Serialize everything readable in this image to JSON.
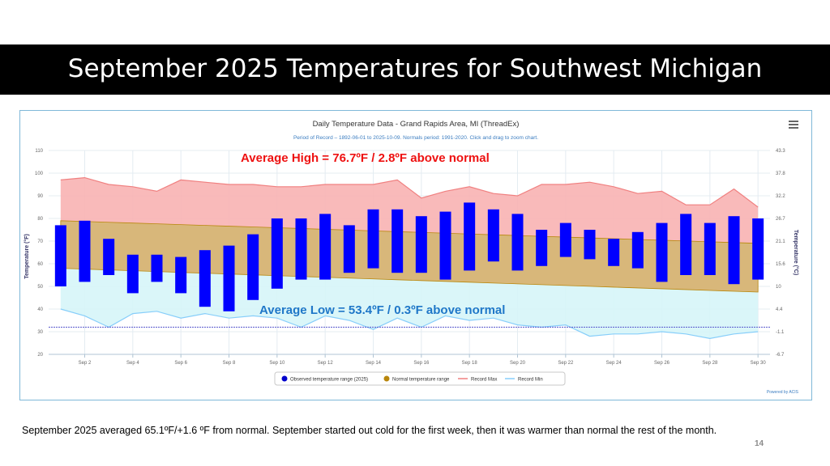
{
  "slide": {
    "title": "September 2025 Temperatures for Southwest Michigan",
    "footer": "September 2025 averaged 65.1ºF/+1.6 ºF from normal. September started out cold for the first week, then it was warmer than normal the rest of the month.",
    "page_number": "14"
  },
  "chart_data": {
    "type": "bar",
    "title": "Daily Temperature Data - Grand Rapids Area, MI (ThreadEx)",
    "subtitle": "Period of Record – 1892-06-01 to 2025-10-09. Normals period: 1991-2020. Click and drag to zoom chart.",
    "ylabel": "Temperature (°F)",
    "ylabel_right": "Temperature (°C)",
    "ylim": [
      20,
      110
    ],
    "y_ticks": [
      20,
      30,
      40,
      50,
      60,
      70,
      80,
      90,
      100,
      110
    ],
    "y_ticks_right": [
      "-6.7",
      "-1.1",
      "4.4",
      "10",
      "15.6",
      "21.1",
      "26.7",
      "32.2",
      "37.8",
      "43.3"
    ],
    "days": [
      1,
      2,
      3,
      4,
      5,
      6,
      7,
      8,
      9,
      10,
      11,
      12,
      13,
      14,
      15,
      16,
      17,
      18,
      19,
      20,
      21,
      22,
      23,
      24,
      25,
      26,
      27,
      28,
      29,
      30
    ],
    "x_tick_labels": [
      {
        "day": 2,
        "label": "Sep 2"
      },
      {
        "day": 4,
        "label": "Sep 4"
      },
      {
        "day": 6,
        "label": "Sep 6"
      },
      {
        "day": 8,
        "label": "Sep 8"
      },
      {
        "day": 10,
        "label": "Sep 10"
      },
      {
        "day": 12,
        "label": "Sep 12"
      },
      {
        "day": 14,
        "label": "Sep 14"
      },
      {
        "day": 16,
        "label": "Sep 16"
      },
      {
        "day": 18,
        "label": "Sep 18"
      },
      {
        "day": 20,
        "label": "Sep 20"
      },
      {
        "day": 22,
        "label": "Sep 22"
      },
      {
        "day": 24,
        "label": "Sep 24"
      },
      {
        "day": 26,
        "label": "Sep 26"
      },
      {
        "day": 28,
        "label": "Sep 28"
      },
      {
        "day": 30,
        "label": "Sep 30"
      }
    ],
    "series": [
      {
        "name": "Observed temperature range (2025)",
        "color": "#0000ff",
        "high": [
          77,
          79,
          71,
          64,
          64,
          63,
          66,
          68,
          73,
          80,
          80,
          82,
          77,
          84,
          84,
          81,
          83,
          87,
          84,
          82,
          75,
          78,
          75,
          71,
          74,
          78,
          82,
          78,
          81,
          80
        ],
        "low": [
          50,
          52,
          55,
          47,
          52,
          47,
          41,
          39,
          44,
          49,
          53,
          53,
          56,
          58,
          56,
          56,
          53,
          57,
          61,
          57,
          59,
          63,
          62,
          59,
          58,
          52,
          55,
          55,
          51,
          53
        ]
      },
      {
        "name": "Normal temperature range",
        "color": "#b8860b",
        "high_start": 79,
        "high_end": 69,
        "low_start": 58,
        "low_end": 47.5
      },
      {
        "name": "Record Max",
        "color": "#f08080",
        "values": [
          97,
          98,
          95,
          94,
          92,
          97,
          96,
          95,
          95,
          94,
          94,
          95,
          95,
          95,
          97,
          89,
          92,
          94,
          91,
          90,
          95,
          95,
          96,
          94,
          91,
          92,
          86,
          86,
          93,
          85
        ]
      },
      {
        "name": "Record Min",
        "color": "#87cefa",
        "values": [
          40,
          37,
          32,
          38,
          39,
          36,
          38,
          36,
          37,
          36,
          32,
          37,
          35,
          31,
          36,
          32,
          37,
          35,
          36,
          33,
          32,
          33,
          28,
          29,
          29,
          30,
          29,
          27,
          29,
          30
        ]
      }
    ],
    "freezing_line": 32,
    "annotations": {
      "avg_high": "Average High = 76.7ºF / 2.8ºF above normal",
      "avg_low": "Average Low = 53.4ºF / 0.3ºF above normal"
    },
    "legend_position": "bottom-center",
    "credit": "Powered by ACIS",
    "colors": {
      "record_area": "#f8b3b3",
      "normal_area": "#d8b77a",
      "low_area": "#d6f5f8",
      "grid": "#e4ecf2",
      "axis_text": "#666666",
      "avg_high_text": "#ee1111",
      "avg_low_text": "#1f77c8"
    }
  }
}
